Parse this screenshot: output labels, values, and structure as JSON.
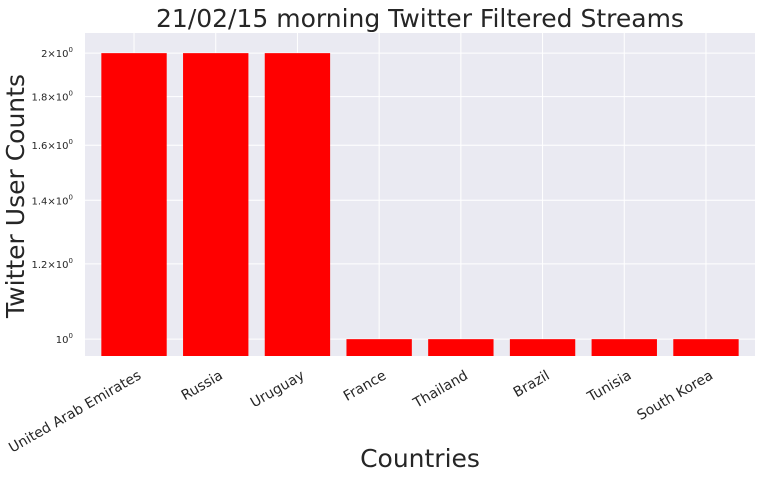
{
  "chart_data": {
    "type": "bar",
    "title": "21/02/15 morning Twitter Filtered Streams",
    "xlabel": "Countries",
    "ylabel": "Twitter User Counts",
    "yscale": "log",
    "ylim": [
      0.96,
      2.1
    ],
    "categories": [
      "United Arab Emirates",
      "Russia",
      "Uruguay",
      "France",
      "Thailand",
      "Brazil",
      "Tunisia",
      "South Korea"
    ],
    "values": [
      2,
      2,
      2,
      1,
      1,
      1,
      1,
      1
    ],
    "yticks": [
      {
        "value": 1.0,
        "mantissa": "",
        "exp": "0"
      },
      {
        "value": 1.2,
        "mantissa": "1.2",
        "exp": "0"
      },
      {
        "value": 1.4,
        "mantissa": "1.4",
        "exp": "0"
      },
      {
        "value": 1.6,
        "mantissa": "1.6",
        "exp": "0"
      },
      {
        "value": 1.8,
        "mantissa": "1.8",
        "exp": "0"
      },
      {
        "value": 2.0,
        "mantissa": "2",
        "exp": "0"
      }
    ],
    "ytick_base": "10",
    "bar_color": "#ff0000",
    "background_color": "#eaeaf2",
    "grid": true
  }
}
